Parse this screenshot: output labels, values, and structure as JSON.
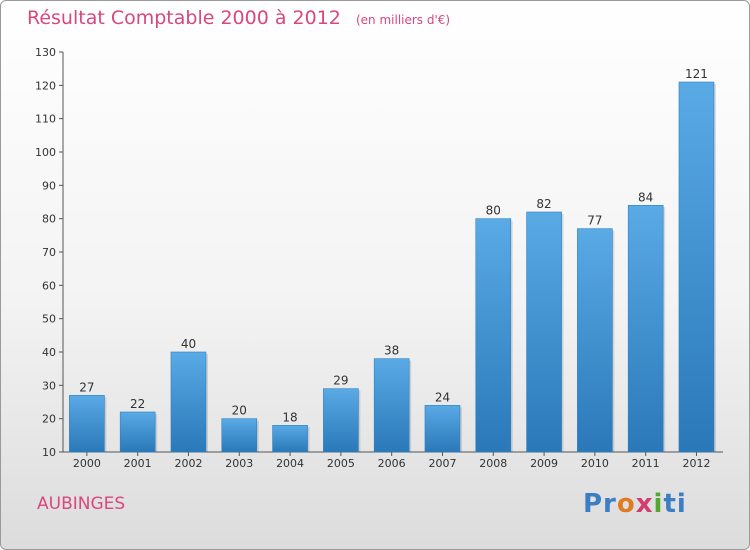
{
  "header": {
    "title": "Résultat Comptable 2000 à 2012",
    "unit": "(en milliers d'€)"
  },
  "footer": {
    "commune": "AUBINGES",
    "logo": "Proxiti"
  },
  "colors": {
    "bar_top": "#5aaae6",
    "bar_bottom": "#2a78b8",
    "title": "#d9477e"
  },
  "chart_data": {
    "type": "bar",
    "title": "Résultat Comptable 2000 à 2012",
    "subtitle": "(en milliers d'€)",
    "xlabel": "",
    "ylabel": "",
    "categories": [
      "2000",
      "2001",
      "2002",
      "2003",
      "2004",
      "2005",
      "2006",
      "2007",
      "2008",
      "2009",
      "2010",
      "2011",
      "2012"
    ],
    "values": [
      27,
      22,
      40,
      20,
      18,
      29,
      38,
      24,
      80,
      82,
      77,
      84,
      121
    ],
    "ylim": [
      10,
      130
    ],
    "yticks": [
      10,
      20,
      30,
      40,
      50,
      60,
      70,
      80,
      90,
      100,
      110,
      120,
      130
    ],
    "grid": false,
    "legend": "none"
  }
}
